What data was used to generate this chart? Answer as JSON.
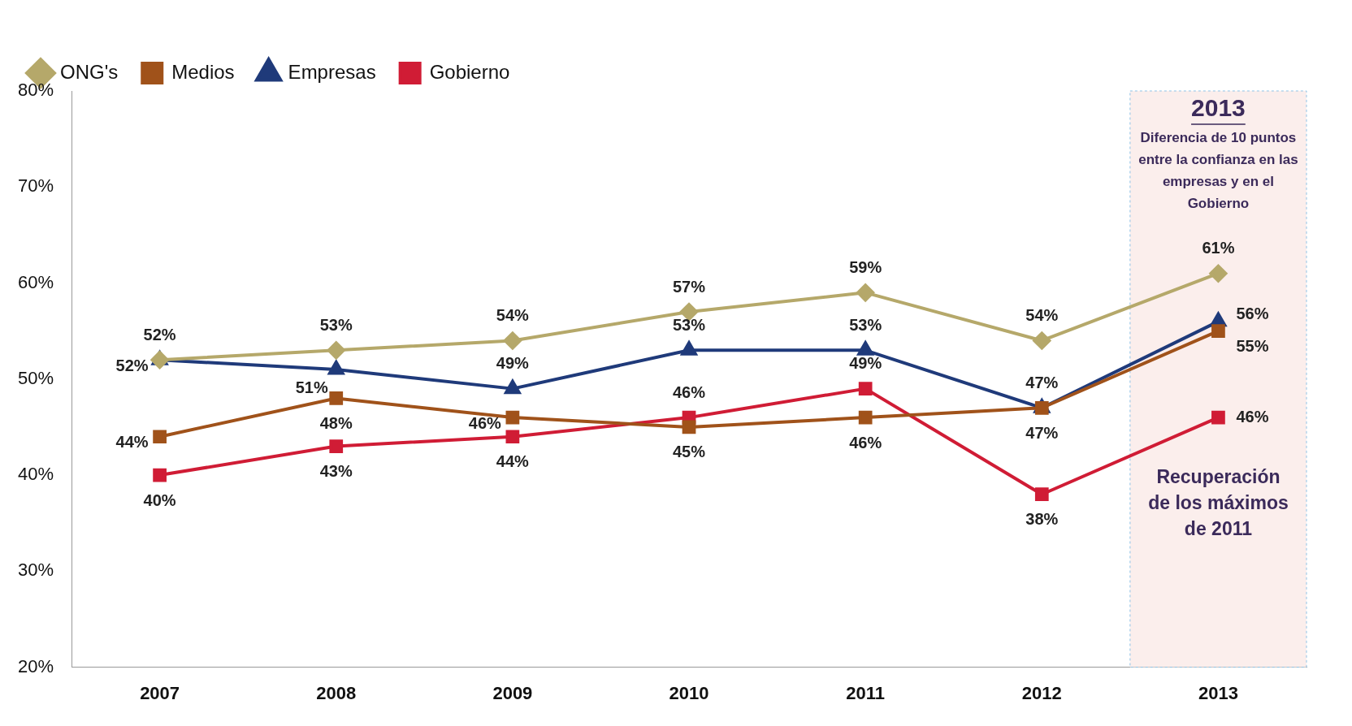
{
  "chart_data": {
    "type": "line",
    "categories": [
      "2007",
      "2008",
      "2009",
      "2010",
      "2011",
      "2012",
      "2013"
    ],
    "series": [
      {
        "name": "ONG's",
        "color": "#b5a86a",
        "marker": "diamond",
        "values": [
          52,
          53,
          54,
          57,
          59,
          54,
          61
        ],
        "value_labels": [
          "52%",
          "53%",
          "54%",
          "57%",
          "59%",
          "54%",
          "61%"
        ]
      },
      {
        "name": "Medios",
        "color": "#a0521a",
        "marker": "square",
        "values": [
          44,
          48,
          46,
          45,
          46,
          47,
          55
        ],
        "value_labels": [
          "44%",
          "48%",
          "46%",
          "45%",
          "46%",
          "47%",
          "55%"
        ]
      },
      {
        "name": "Empresas",
        "color": "#1f3a7a",
        "marker": "triangle",
        "values": [
          52,
          51,
          49,
          53,
          53,
          47,
          56
        ],
        "value_labels": [
          "52%",
          "51%",
          "49%",
          "53%",
          "53%",
          "47%",
          "56%"
        ]
      },
      {
        "name": "Gobierno",
        "color": "#d01c35",
        "marker": "square",
        "values": [
          40,
          43,
          44,
          46,
          49,
          38,
          46
        ],
        "value_labels": [
          "40%",
          "43%",
          "44%",
          "46%",
          "49%",
          "38%",
          "46%"
        ]
      }
    ],
    "ylim": [
      20,
      80
    ],
    "yticks": [
      {
        "value": 20,
        "label": "20%"
      },
      {
        "value": 30,
        "label": "30%"
      },
      {
        "value": 40,
        "label": "40%"
      },
      {
        "value": 50,
        "label": "50%"
      },
      {
        "value": 60,
        "label": "60%"
      },
      {
        "value": 70,
        "label": "70%"
      },
      {
        "value": 80,
        "label": "80%"
      }
    ],
    "grid": false,
    "legend": "top left",
    "line_style": "solid",
    "bands": [
      {
        "axis": "x",
        "from": "2013",
        "to": "2013",
        "label": "2013",
        "color": "#fbeeec"
      }
    ],
    "annotations": [
      "Diferencia de 10 puntos entre la confianza en las empresas y en el Gobierno",
      "Recuperación de los máximos de 2011"
    ]
  }
}
